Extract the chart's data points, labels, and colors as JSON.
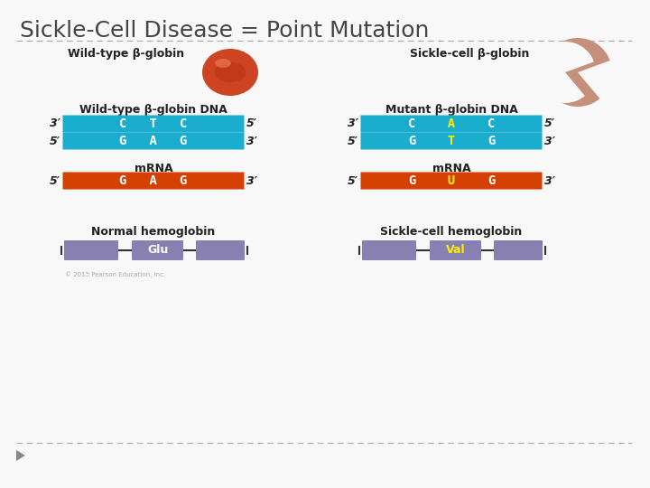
{
  "title": "Sickle-Cell Disease = Point Mutation",
  "bg_color": "#f8f8f8",
  "title_color": "#444444",
  "title_fontsize": 18,
  "dna_bar_color": "#1AADCE",
  "mrna_bar_color": "#D44000",
  "protein_bar_color": "#8880B0",
  "white_text": "#ffffff",
  "yellow_text": "#FFEE00",
  "dark_text": "#222222",
  "normal_dna_label": "Wild-type β-globin DNA",
  "mutant_dna_label": "Mutant β-globin DNA",
  "mrna_label": "mRNA",
  "normal_hemo_label": "Normal hemoglobin",
  "sickle_hemo_label": "Sickle-cell hemoglobin",
  "wildtype_label": "Wild-type β-globin",
  "sickle_label": "Sickle-cell β-globin",
  "glu_label": "Glu",
  "val_label": "Val",
  "separator_color": "#AAAAAA",
  "prime_fontsize": 9,
  "label_fontsize": 9,
  "bar_letter_fontsize": 10,
  "copyright": "© 2015 Pearson Education, Inc."
}
